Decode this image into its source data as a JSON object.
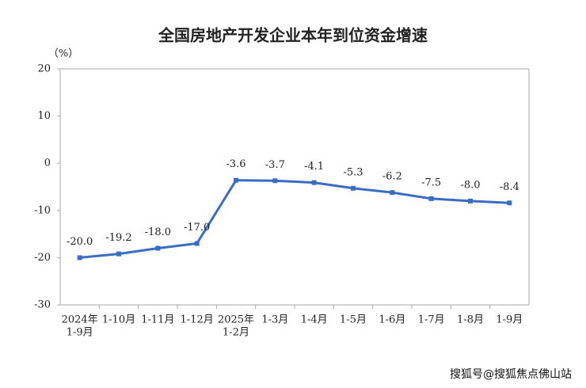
{
  "chart_data": {
    "type": "line",
    "title": "全国房地产开发企业本年到位资金增速",
    "y_unit": "（%）",
    "watermark": "搜狐号@搜狐焦点佛山站",
    "categories": [
      [
        "2024年",
        "1-9月"
      ],
      "1-10月",
      "1-11月",
      "1-12月",
      [
        "2025年",
        "1-2月"
      ],
      "1-3月",
      "1-4月",
      "1-5月",
      "1-6月",
      "1-7月",
      "1-8月",
      "1-9月"
    ],
    "values": [
      -20.0,
      -19.2,
      -18.0,
      -17.0,
      -3.6,
      -3.7,
      -4.1,
      -5.3,
      -6.2,
      -7.5,
      -8.0,
      -8.4
    ],
    "value_labels": [
      "-20.0",
      "-19.2",
      "-18.0",
      "-17.0",
      "-3.6",
      "-3.7",
      "-4.1",
      "-5.3",
      "-6.2",
      "-7.5",
      "-8.0",
      "-8.4"
    ],
    "color": "#3a6cc4",
    "ylim": [
      -30,
      20
    ],
    "yticks": [
      -30,
      -20,
      -10,
      0,
      10,
      20
    ],
    "grid": false
  }
}
